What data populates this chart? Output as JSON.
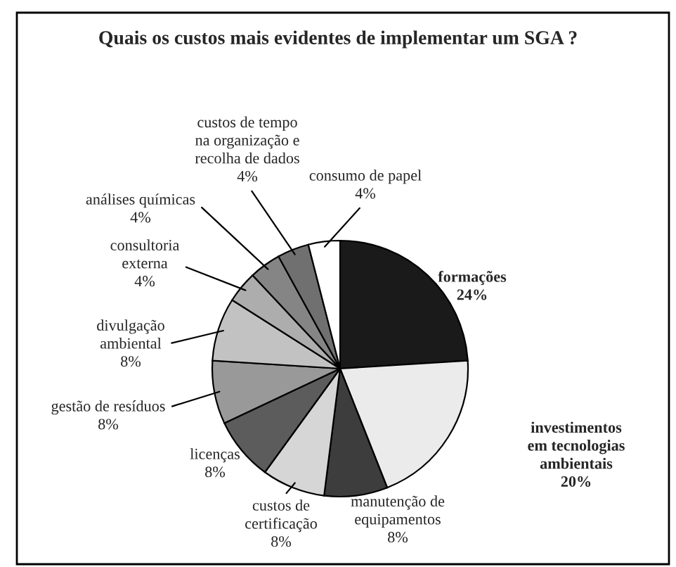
{
  "chart_data": {
    "type": "pie",
    "title": "Quais os custos mais evidentes de implementar um SGA ?",
    "categories": [
      "formações",
      "investimentos\nem tecnologias\nambientais",
      "manutenção de\nequipamentos",
      "custos de\ncertificação",
      "licenças",
      "gestão de resíduos",
      "divulgação\nambiental",
      "consultoria\nexterna",
      "análises químicas",
      "custos de tempo\nna organização e\nrecolha de dados",
      "consumo de papel"
    ],
    "values": [
      24,
      20,
      8,
      8,
      8,
      8,
      8,
      4,
      4,
      4,
      4
    ],
    "value_labels": [
      "24%",
      "20%",
      "8%",
      "8%",
      "8%",
      "8%",
      "8%",
      "4%",
      "4%",
      "4%",
      "4%"
    ],
    "colors": [
      "#1a1a1a",
      "#ebebeb",
      "#3d3d3d",
      "#d6d6d6",
      "#5c5c5c",
      "#999999",
      "#c2c2c2",
      "#adadad",
      "#858585",
      "#707070",
      "#ffffff"
    ]
  }
}
